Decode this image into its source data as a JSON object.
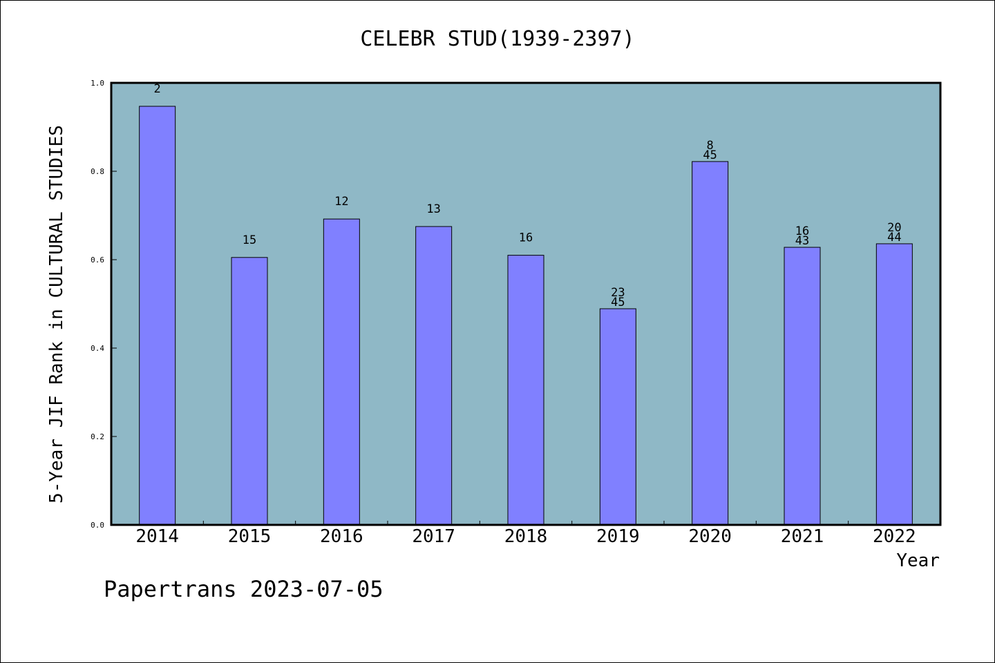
{
  "chart_data": {
    "type": "bar",
    "title": "CELEBR STUD(1939-2397)",
    "xlabel": "Year",
    "ylabel": "5-Year JIF Rank in CULTURAL STUDIES",
    "categories": [
      "2014",
      "2015",
      "2016",
      "2017",
      "2018",
      "2019",
      "2020",
      "2021",
      "2022"
    ],
    "values": [
      0.947,
      0.605,
      0.692,
      0.675,
      0.61,
      0.489,
      0.822,
      0.628,
      0.636
    ],
    "bar_labels": [
      [
        "2"
      ],
      [
        "15"
      ],
      [
        "12"
      ],
      [
        "13"
      ],
      [
        "16"
      ],
      [
        "23",
        "45"
      ],
      [
        "8",
        "45"
      ],
      [
        "16",
        "43"
      ],
      [
        "20",
        "44"
      ]
    ],
    "ylim": [
      0,
      1.0
    ],
    "yticks": [
      "0.0",
      "0.2",
      "0.4",
      "0.6",
      "0.8",
      "1.0"
    ],
    "grid": false,
    "colors": {
      "plot_background": "#8fb8c6",
      "bar_fill": "#8080ff",
      "bar_stroke": "#000000"
    }
  },
  "footer": {
    "text": "Papertrans 2023-07-05"
  }
}
